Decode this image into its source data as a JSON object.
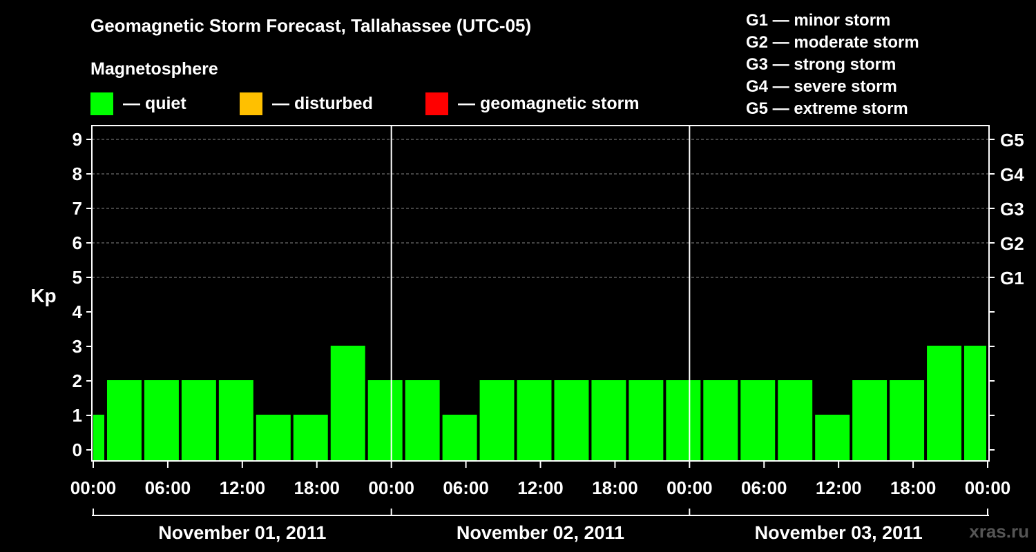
{
  "chart_data": {
    "type": "bar",
    "title": "Geomagnetic Storm Forecast, Tallahassee (UTC-05)",
    "subtitle": "Magnetosphere",
    "ylabel": "Kp",
    "ylim": [
      0,
      9
    ],
    "y_ticks": [
      "0",
      "1",
      "2",
      "3",
      "4",
      "5",
      "6",
      "7",
      "8",
      "9"
    ],
    "right_axis_labels": [
      {
        "kp": 5,
        "label": "G1"
      },
      {
        "kp": 6,
        "label": "G2"
      },
      {
        "kp": 7,
        "label": "G3"
      },
      {
        "kp": 8,
        "label": "G4"
      },
      {
        "kp": 9,
        "label": "G5"
      }
    ],
    "legend": [
      {
        "label": "— quiet",
        "color": "#00ff00"
      },
      {
        "label": "— disturbed",
        "color": "#ffc000"
      },
      {
        "label": "— geomagnetic storm",
        "color": "#ff0000"
      }
    ],
    "storm_scale": [
      "G1 — minor storm",
      "G2 — moderate storm",
      "G3 — strong storm",
      "G4 — severe storm",
      "G5 — extreme storm"
    ],
    "x_range_hours": [
      0,
      72
    ],
    "x_tick_hours": [
      0,
      6,
      12,
      18,
      24,
      30,
      36,
      42,
      48,
      54,
      60,
      66,
      72
    ],
    "x_tick_labels": [
      "00:00",
      "06:00",
      "12:00",
      "18:00",
      "00:00",
      "06:00",
      "12:00",
      "18:00",
      "00:00",
      "06:00",
      "12:00",
      "18:00",
      "00:00"
    ],
    "day_labels": [
      "November 01, 2011",
      "November 02, 2011",
      "November 03, 2011"
    ],
    "series": [
      {
        "bars": [
          {
            "start_h": 0,
            "end_h": 1,
            "kp": 1
          },
          {
            "start_h": 1,
            "end_h": 4,
            "kp": 2
          },
          {
            "start_h": 4,
            "end_h": 7,
            "kp": 2
          },
          {
            "start_h": 7,
            "end_h": 10,
            "kp": 2
          },
          {
            "start_h": 10,
            "end_h": 13,
            "kp": 2
          },
          {
            "start_h": 13,
            "end_h": 16,
            "kp": 1
          },
          {
            "start_h": 16,
            "end_h": 19,
            "kp": 1
          },
          {
            "start_h": 19,
            "end_h": 22,
            "kp": 3
          },
          {
            "start_h": 22,
            "end_h": 25,
            "kp": 2
          },
          {
            "start_h": 25,
            "end_h": 28,
            "kp": 2
          },
          {
            "start_h": 28,
            "end_h": 31,
            "kp": 1
          },
          {
            "start_h": 31,
            "end_h": 34,
            "kp": 2
          },
          {
            "start_h": 34,
            "end_h": 37,
            "kp": 2
          },
          {
            "start_h": 37,
            "end_h": 40,
            "kp": 2
          },
          {
            "start_h": 40,
            "end_h": 43,
            "kp": 2
          },
          {
            "start_h": 43,
            "end_h": 46,
            "kp": 2
          },
          {
            "start_h": 46,
            "end_h": 49,
            "kp": 2
          },
          {
            "start_h": 49,
            "end_h": 52,
            "kp": 2
          },
          {
            "start_h": 52,
            "end_h": 55,
            "kp": 2
          },
          {
            "start_h": 55,
            "end_h": 58,
            "kp": 2
          },
          {
            "start_h": 58,
            "end_h": 61,
            "kp": 1
          },
          {
            "start_h": 61,
            "end_h": 64,
            "kp": 2
          },
          {
            "start_h": 64,
            "end_h": 67,
            "kp": 2
          },
          {
            "start_h": 67,
            "end_h": 70,
            "kp": 3
          },
          {
            "start_h": 70,
            "end_h": 72,
            "kp": 3
          }
        ]
      }
    ],
    "grid": true
  },
  "watermark": "xras.ru"
}
